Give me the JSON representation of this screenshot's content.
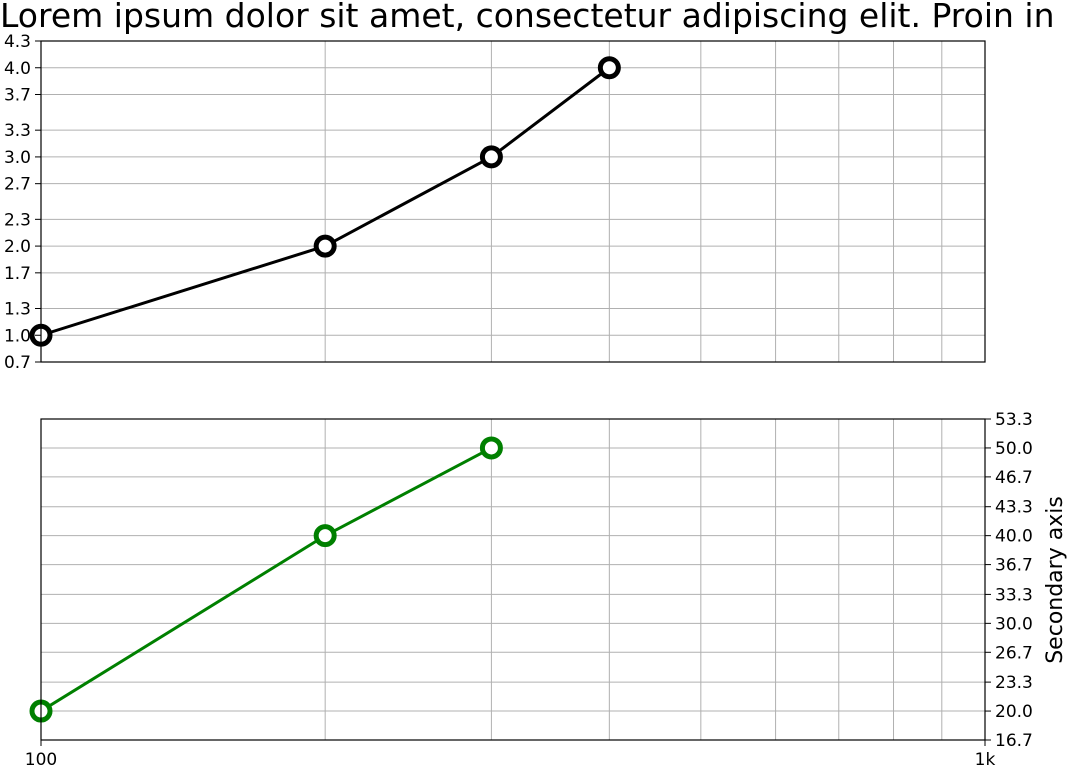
{
  "chart_data": [
    {
      "type": "line",
      "title": "Lorem ipsum dolor sit amet, consectetur adipiscing elit. Proin in",
      "x_scale": "log",
      "xlim": [
        100,
        1000
      ],
      "ylim": [
        0.7,
        4.3
      ],
      "grid": true,
      "y_ticks": [
        "0.7",
        "1.0",
        "1.3",
        "1.7",
        "2.0",
        "2.3",
        "2.7",
        "3.0",
        "3.3",
        "3.7",
        "4.0",
        "4.3"
      ],
      "y_tick_values": [
        0.7,
        1.0,
        1.3,
        1.7,
        2.0,
        2.3,
        2.7,
        3.0,
        3.3,
        3.7,
        4.0,
        4.3
      ],
      "series": [
        {
          "color": "#000000",
          "marker": "hollow-circle",
          "x": [
            100,
            200,
            300,
            400
          ],
          "y": [
            1,
            2,
            3,
            4
          ]
        }
      ]
    },
    {
      "type": "line",
      "x_scale": "log",
      "xlim": [
        100,
        1000
      ],
      "ylim": [
        16.7,
        53.3
      ],
      "y_axis_side": "right",
      "ylabel": "Secondary axis",
      "grid": true,
      "x_ticks": [
        "100",
        "1k"
      ],
      "x_tick_values": [
        100,
        1000
      ],
      "y_ticks": [
        "16.7",
        "20.0",
        "23.3",
        "26.7",
        "30.0",
        "33.3",
        "36.7",
        "40.0",
        "43.3",
        "46.7",
        "50.0",
        "53.3"
      ],
      "y_tick_values": [
        16.7,
        20.0,
        23.3,
        26.7,
        30.0,
        33.3,
        36.7,
        40.0,
        43.3,
        46.7,
        50.0,
        53.3
      ],
      "series": [
        {
          "color": "#008000",
          "marker": "hollow-circle",
          "x": [
            100,
            200,
            300
          ],
          "y": [
            20,
            40,
            50
          ]
        }
      ]
    }
  ]
}
